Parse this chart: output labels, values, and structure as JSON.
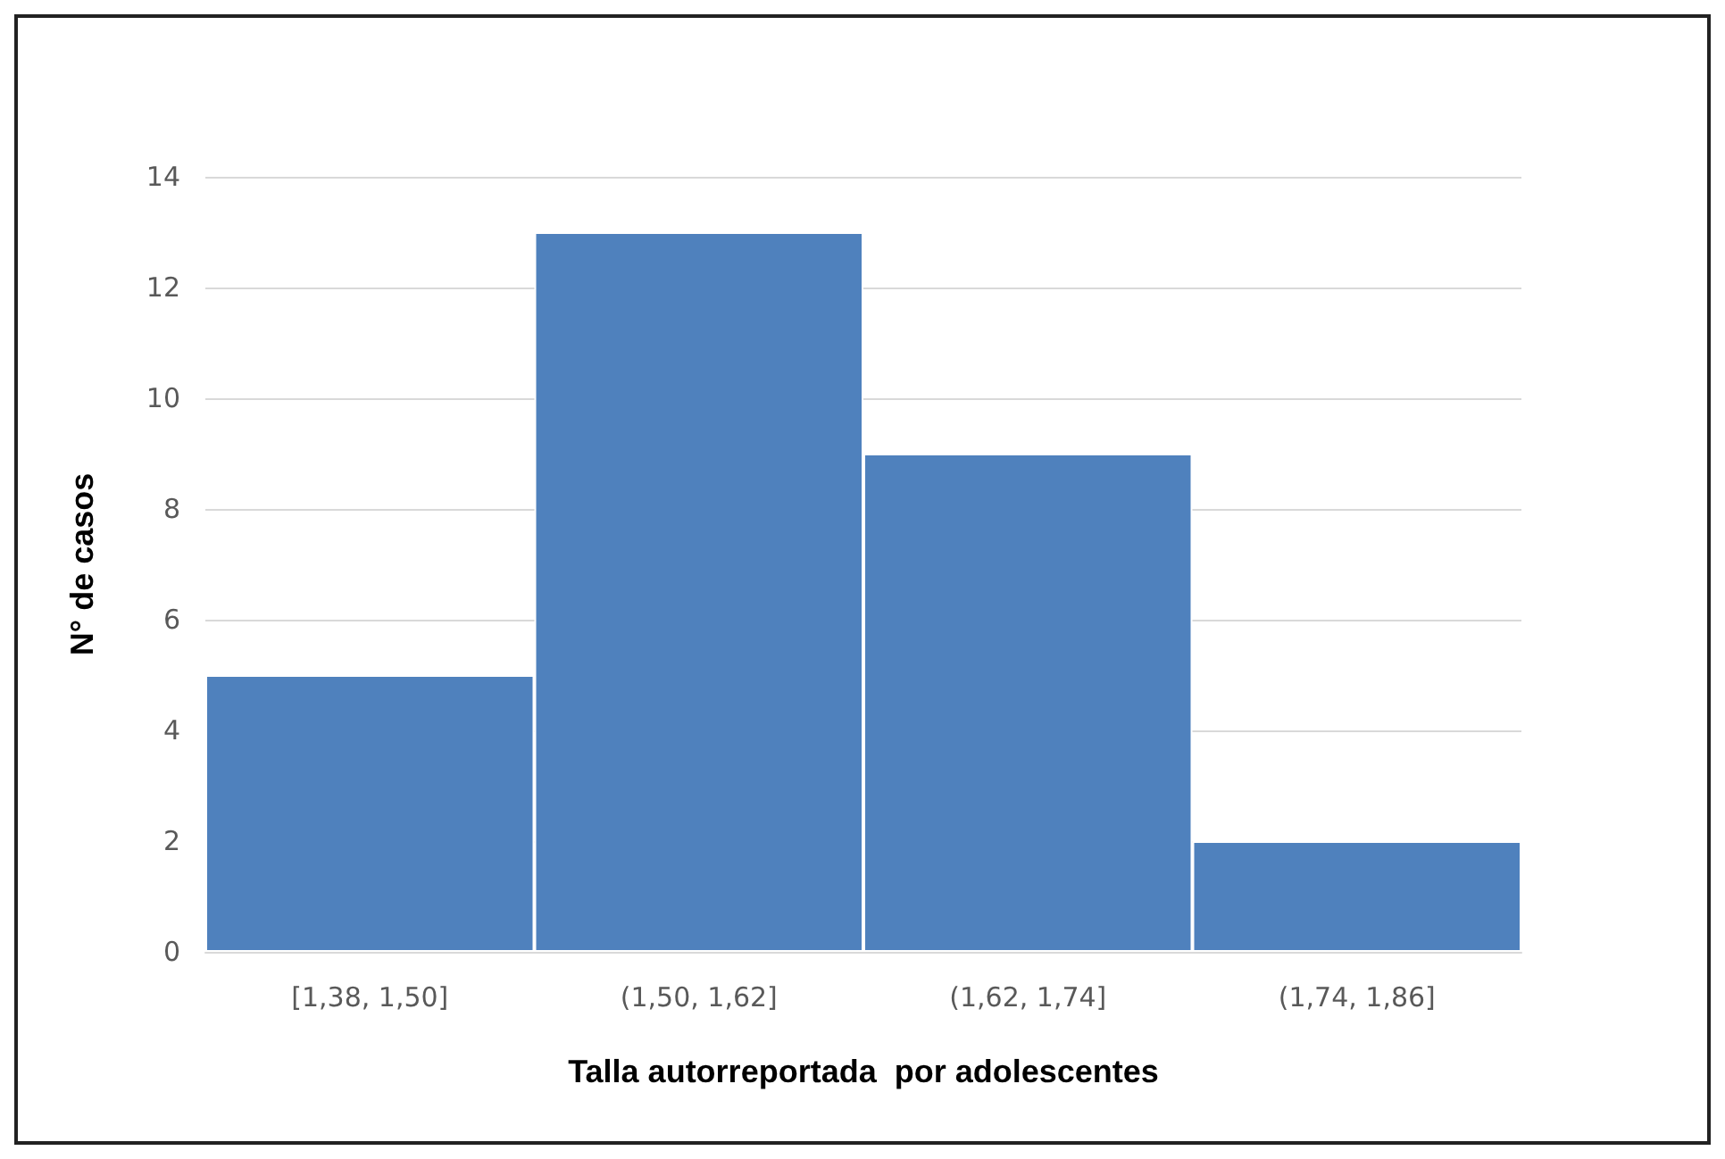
{
  "chart_data": {
    "type": "histogram",
    "xlabel": "Talla autorreportada  por adolescentes",
    "ylabel": "N° de casos",
    "categories": [
      "[1,38, 1,50]",
      "(1,50, 1,62]",
      "(1,62, 1,74]",
      "(1,74, 1,86]"
    ],
    "values": [
      5,
      13,
      9,
      2
    ],
    "color": "#4f81bd",
    "ylim": [
      0,
      14
    ],
    "yticks": [
      0,
      2,
      4,
      6,
      8,
      10,
      12,
      14
    ],
    "grid": "y"
  }
}
